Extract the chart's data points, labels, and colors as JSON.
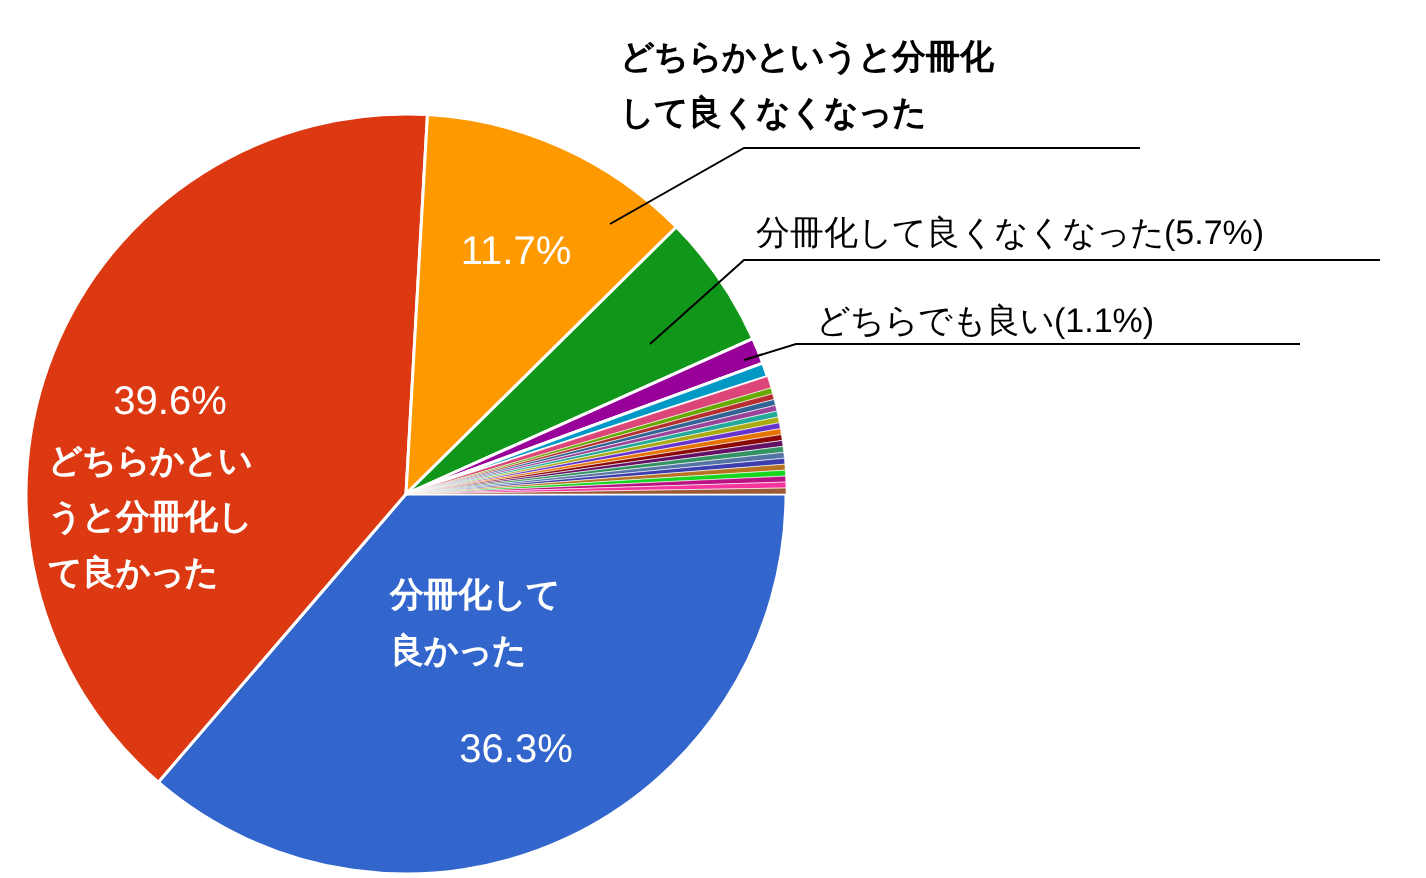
{
  "chart_data": {
    "type": "pie",
    "categories": [
      "分冊化して良かった",
      "どちらかというと分冊化して良かった",
      "どちらかというと分冊化して良くなくなった",
      "分冊化して良くなくなった",
      "どちらでも良い",
      null,
      null,
      null,
      null,
      null,
      null,
      null,
      null,
      null,
      null,
      null,
      null,
      null,
      null,
      null,
      null,
      null,
      null,
      null,
      null
    ],
    "values": [
      36.3,
      39.6,
      11.7,
      5.7,
      1.1,
      0.6,
      0.5,
      0.25,
      0.25,
      0.25,
      0.25,
      0.25,
      0.25,
      0.25,
      0.25,
      0.25,
      0.25,
      0.25,
      0.25,
      0.25,
      0.25,
      0.25,
      0.25,
      0.25,
      0.25
    ],
    "value_labels": [
      "36.3%",
      "39.6%",
      "11.7%",
      "(5.7%)",
      "(1.1%)",
      null,
      null,
      null,
      null,
      null,
      null,
      null,
      null,
      null,
      null,
      null,
      null,
      null,
      null,
      null,
      null,
      null,
      null,
      null,
      null
    ],
    "colors": [
      "#3366cc",
      "#dc3912",
      "#ff9900",
      "#109618",
      "#990099",
      "#0099c6",
      "#dd4477",
      "#66aa00",
      "#b82e2e",
      "#316395",
      "#994499",
      "#22aa99",
      "#aaaa11",
      "#6633cc",
      "#e67300",
      "#8b0707",
      "#651067",
      "#329262",
      "#5574a6",
      "#3b3eac",
      "#b77322",
      "#16d620",
      "#b91383",
      "#f4359e",
      "#9c5935"
    ]
  }
}
